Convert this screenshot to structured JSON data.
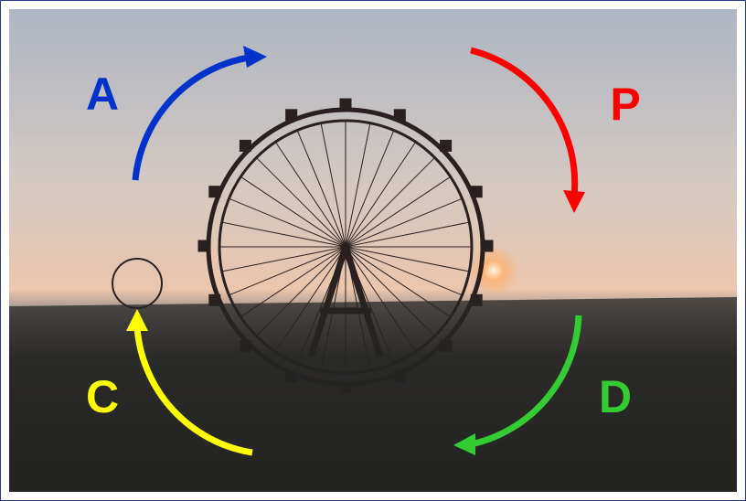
{
  "nodes": [
    {
      "label": "A",
      "color": "#0033cc"
    },
    {
      "label": "P",
      "color": "#ff0000"
    },
    {
      "label": "D",
      "color": "#33cc33"
    },
    {
      "label": "C",
      "color": "#ffff00"
    }
  ]
}
